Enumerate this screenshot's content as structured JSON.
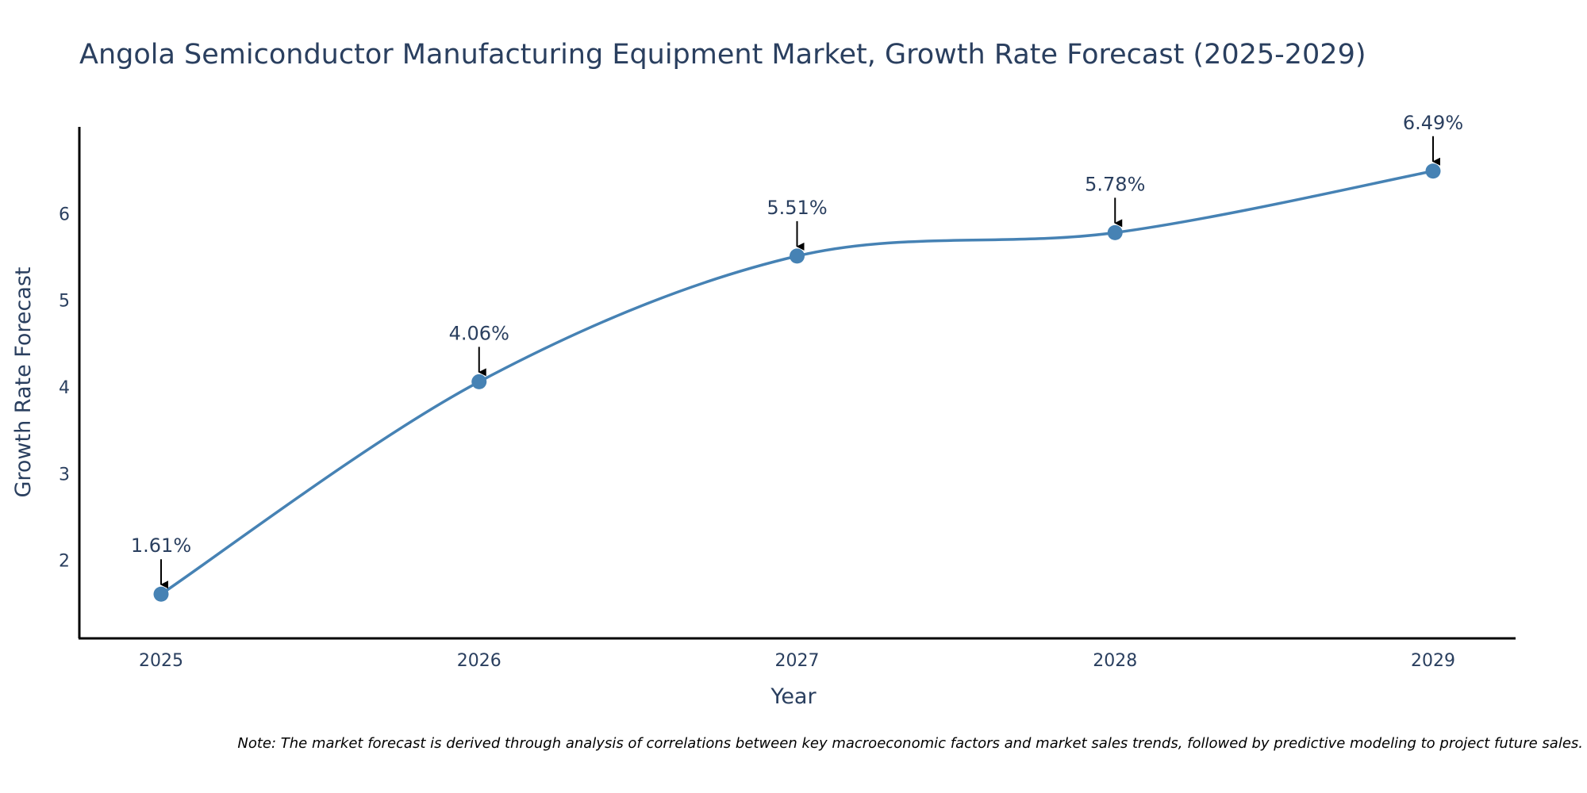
{
  "chart_data": {
    "type": "line",
    "title": "Angola Semiconductor Manufacturing Equipment Market, Growth Rate Forecast (2025-2029)",
    "xlabel": "Year",
    "ylabel": "Growth Rate Forecast",
    "categories": [
      "2025",
      "2026",
      "2027",
      "2028",
      "2029"
    ],
    "values": [
      1.61,
      4.06,
      5.51,
      5.78,
      6.49
    ],
    "data_labels": [
      "1.61%",
      "4.06%",
      "5.51%",
      "5.78%",
      "6.49%"
    ],
    "yticks": [
      2,
      3,
      4,
      5,
      6
    ],
    "ylim": [
      1.1,
      7.0
    ],
    "line_shape": "spline",
    "line_color": "#4682b4",
    "note": "Note: The market forecast is derived through analysis of correlations between key macroeconomic factors and market sales trends, followed by predictive modeling to project future sales."
  }
}
